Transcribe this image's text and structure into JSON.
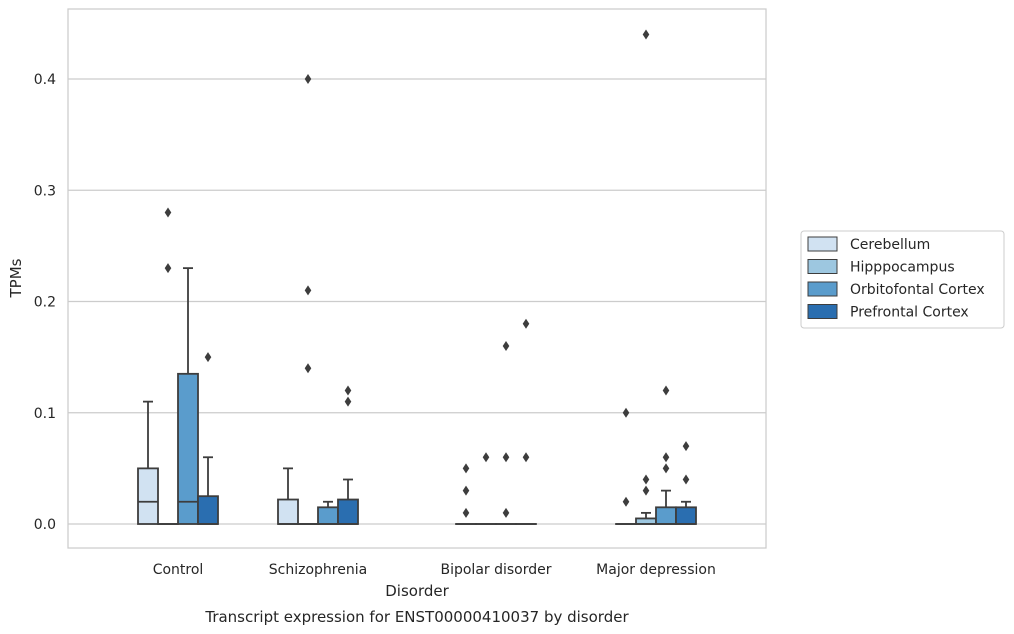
{
  "chart_data": {
    "type": "box",
    "title": "",
    "caption": "Transcript expression for ENST00000410037 by disorder",
    "xlabel": "Disorder",
    "ylabel": "TPMs",
    "ylim": [
      -0.022,
      0.465
    ],
    "yticks": [
      0.0,
      0.1,
      0.2,
      0.3,
      0.4
    ],
    "ytick_labels": [
      "0.0",
      "0.1",
      "0.2",
      "0.3",
      "0.4"
    ],
    "grid": "horizontal",
    "legend_position": "right",
    "categories": [
      "Control",
      "Schizophrenia",
      "Bipolar disorder",
      "Major depression"
    ],
    "series": [
      {
        "name": "Cerebellum",
        "color": "#d1e2f2",
        "boxes": [
          {
            "q1": 0.0,
            "median": 0.02,
            "q3": 0.05,
            "whisker_low": 0.0,
            "whisker_high": 0.11,
            "outliers": []
          },
          {
            "q1": 0.0,
            "median": 0.0,
            "q3": 0.022,
            "whisker_low": 0.0,
            "whisker_high": 0.05,
            "outliers": []
          },
          {
            "q1": 0.0,
            "median": 0.0,
            "q3": 0.0,
            "whisker_low": 0.0,
            "whisker_high": 0.0,
            "outliers": [
              0.01,
              0.03,
              0.05
            ]
          },
          {
            "q1": 0.0,
            "median": 0.0,
            "q3": 0.0,
            "whisker_low": 0.0,
            "whisker_high": 0.0,
            "outliers": [
              0.02,
              0.1
            ]
          }
        ]
      },
      {
        "name": "Hipppocampus",
        "color": "#9dc7e0",
        "boxes": [
          {
            "q1": 0.0,
            "median": 0.0,
            "q3": 0.0,
            "whisker_low": 0.0,
            "whisker_high": 0.0,
            "outliers": [
              0.23,
              0.28
            ]
          },
          {
            "q1": 0.0,
            "median": 0.0,
            "q3": 0.0,
            "whisker_low": 0.0,
            "whisker_high": 0.0,
            "outliers": [
              0.14,
              0.21,
              0.4
            ]
          },
          {
            "q1": 0.0,
            "median": 0.0,
            "q3": 0.0,
            "whisker_low": 0.0,
            "whisker_high": 0.0,
            "outliers": [
              0.06
            ]
          },
          {
            "q1": 0.0,
            "median": 0.0,
            "q3": 0.005,
            "whisker_low": 0.0,
            "whisker_high": 0.01,
            "outliers": [
              0.03,
              0.04,
              0.44
            ]
          }
        ]
      },
      {
        "name": "Orbitofontal Cortex",
        "color": "#5a9ccc",
        "boxes": [
          {
            "q1": 0.0,
            "median": 0.02,
            "q3": 0.135,
            "whisker_low": 0.0,
            "whisker_high": 0.23,
            "outliers": []
          },
          {
            "q1": 0.0,
            "median": 0.0,
            "q3": 0.015,
            "whisker_low": 0.0,
            "whisker_high": 0.02,
            "outliers": []
          },
          {
            "q1": 0.0,
            "median": 0.0,
            "q3": 0.0,
            "whisker_low": 0.0,
            "whisker_high": 0.0,
            "outliers": [
              0.01,
              0.06,
              0.16
            ]
          },
          {
            "q1": 0.0,
            "median": 0.0,
            "q3": 0.015,
            "whisker_low": 0.0,
            "whisker_high": 0.03,
            "outliers": [
              0.05,
              0.06,
              0.12
            ]
          }
        ]
      },
      {
        "name": "Prefrontal Cortex",
        "color": "#2a6eb0",
        "boxes": [
          {
            "q1": 0.0,
            "median": 0.0,
            "q3": 0.025,
            "whisker_low": 0.0,
            "whisker_high": 0.06,
            "outliers": [
              0.15
            ]
          },
          {
            "q1": 0.0,
            "median": 0.0,
            "q3": 0.022,
            "whisker_low": 0.0,
            "whisker_high": 0.04,
            "outliers": [
              0.11,
              0.12
            ]
          },
          {
            "q1": 0.0,
            "median": 0.0,
            "q3": 0.0,
            "whisker_low": 0.0,
            "whisker_high": 0.0,
            "outliers": [
              0.06,
              0.18
            ]
          },
          {
            "q1": 0.0,
            "median": 0.0,
            "q3": 0.015,
            "whisker_low": 0.0,
            "whisker_high": 0.02,
            "outliers": [
              0.04,
              0.07
            ]
          }
        ]
      }
    ]
  }
}
